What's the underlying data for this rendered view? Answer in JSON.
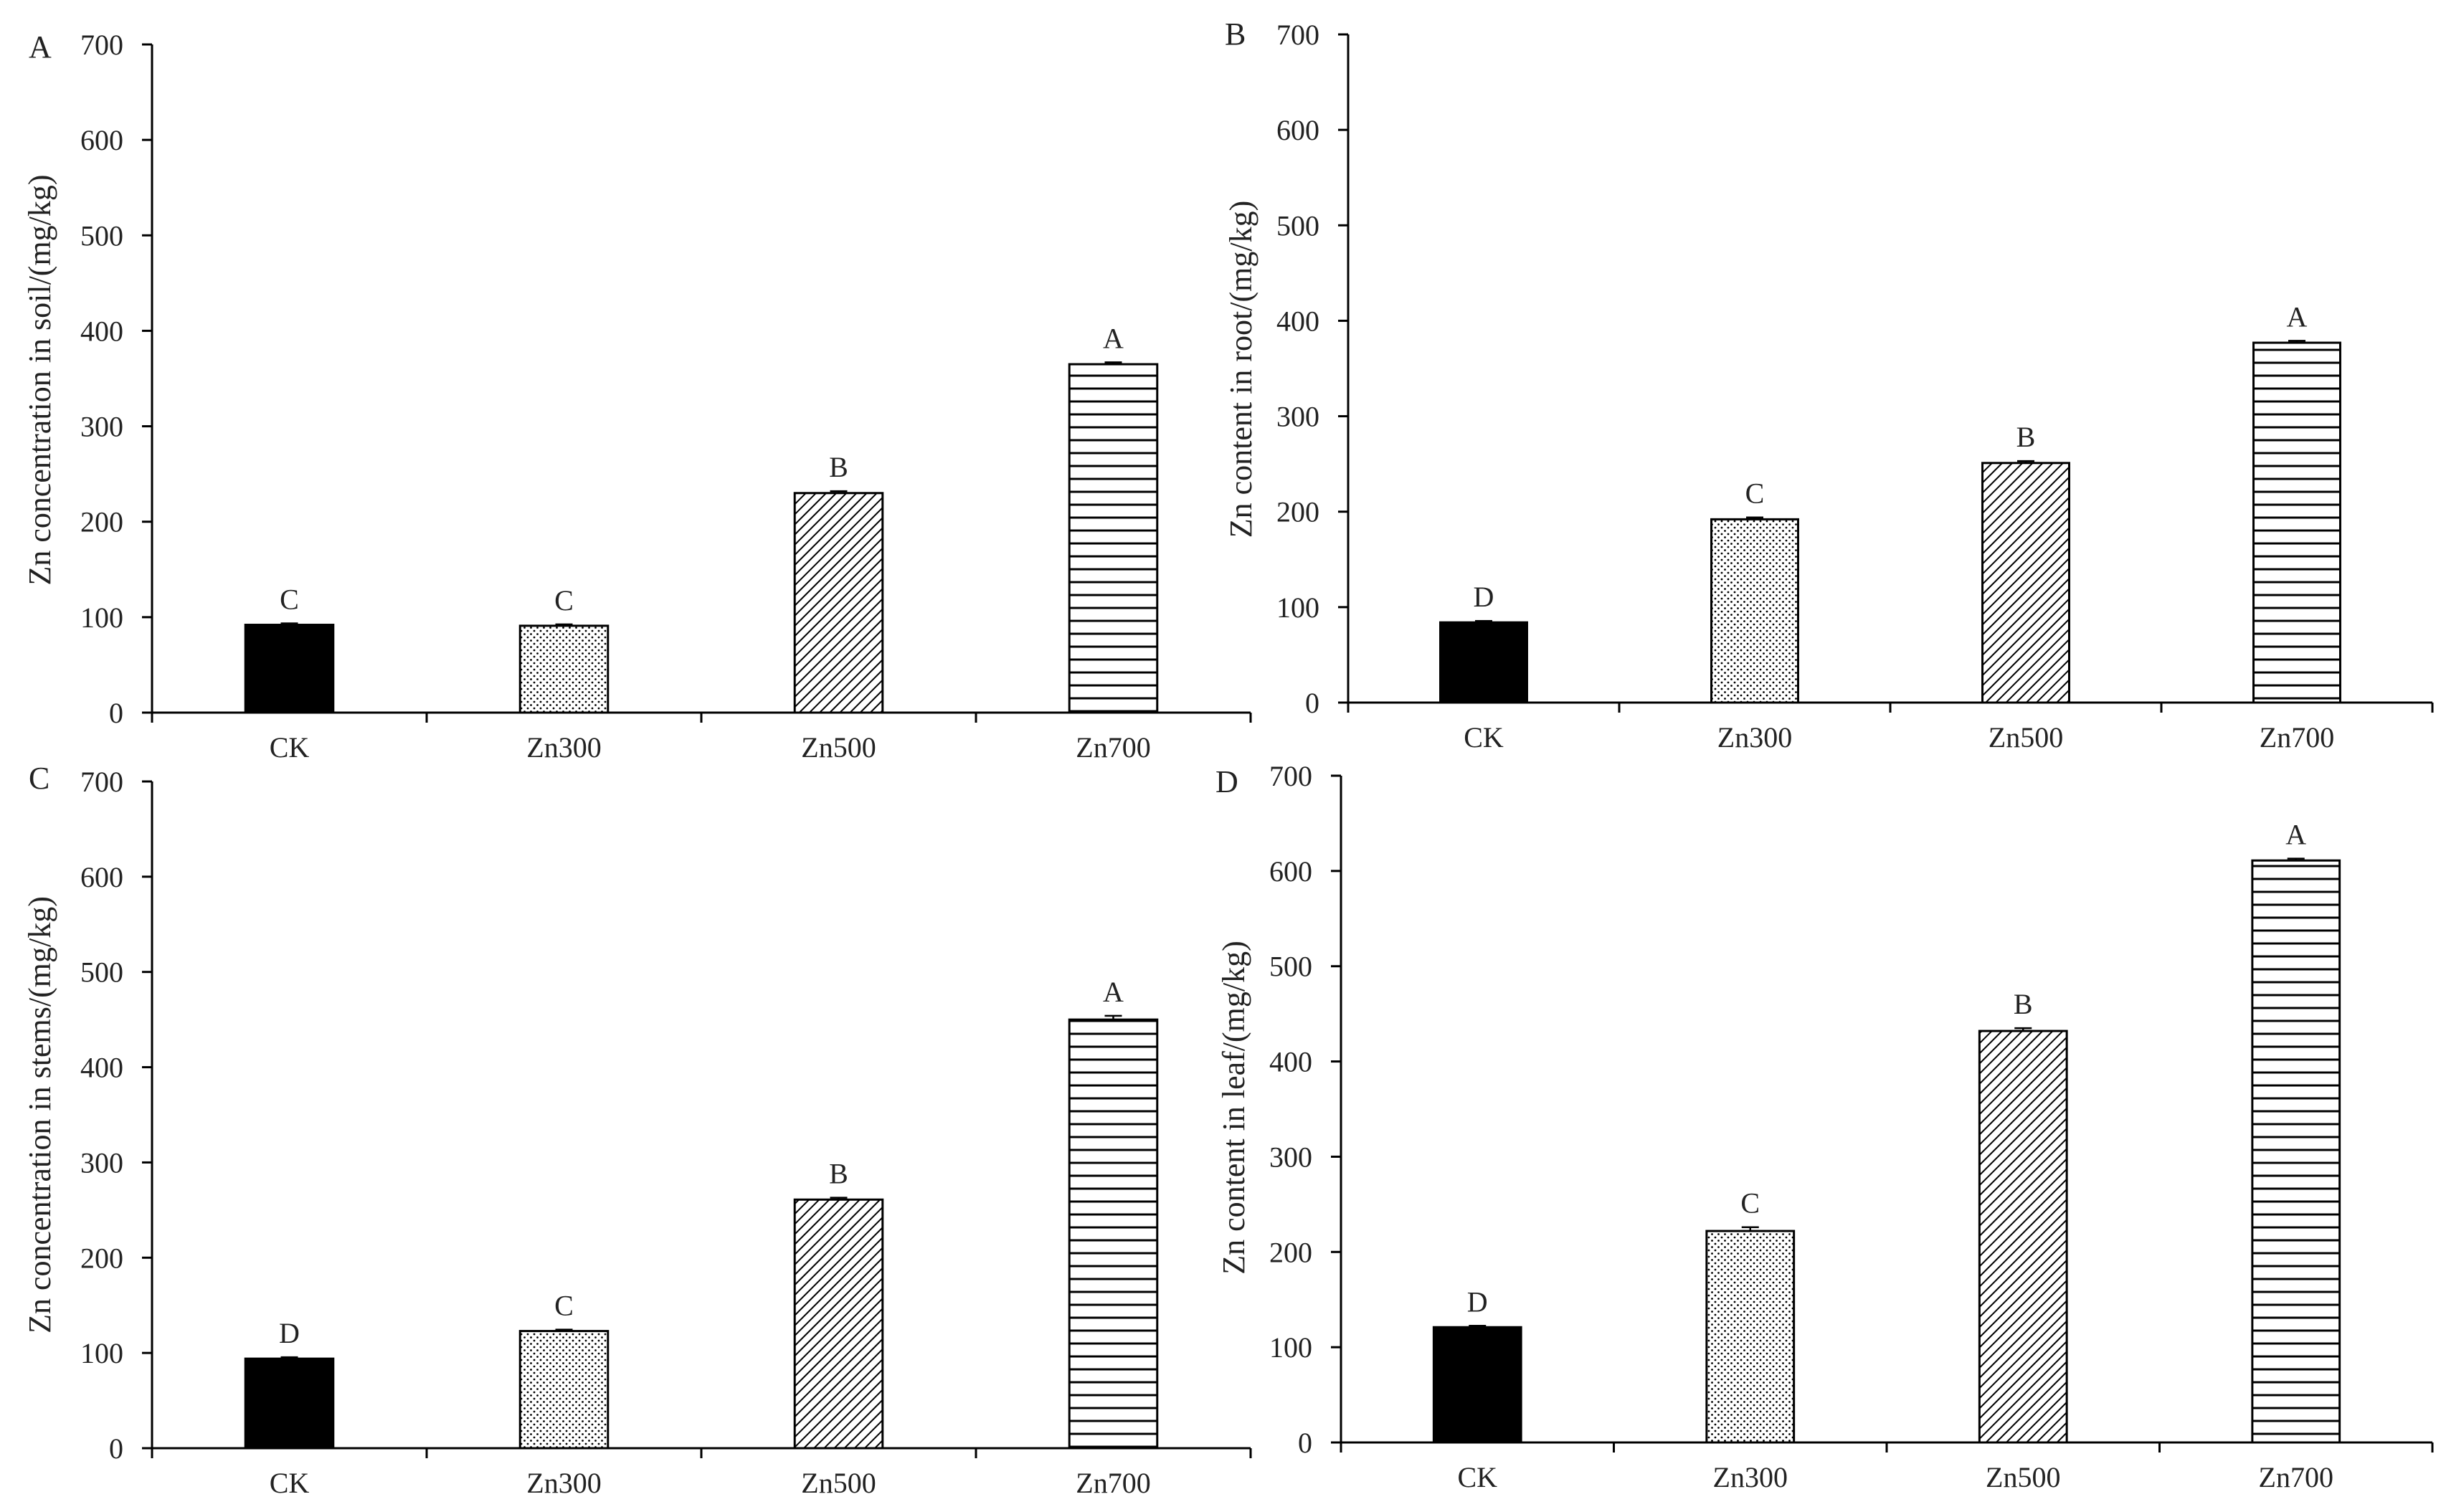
{
  "colors": {
    "ink": "#000000",
    "text": "#222222",
    "background": "#ffffff"
  },
  "chart_data": [
    {
      "type": "bar",
      "panel_label": "A",
      "categories": [
        "CK",
        "Zn300",
        "Zn500",
        "Zn700"
      ],
      "values": [
        92,
        91,
        230,
        365
      ],
      "errors": [
        1.5,
        1.5,
        2,
        2
      ],
      "significance": [
        "C",
        "C",
        "B",
        "A"
      ],
      "patterns": [
        "solid",
        "dots",
        "diagonal",
        "horizontal"
      ],
      "ylabel": "Zn concentration in soil/(mg/kg)",
      "xlabel": "",
      "ylim": [
        0,
        700
      ],
      "yticks": [
        0,
        100,
        200,
        300,
        400,
        500,
        600,
        700
      ],
      "grid": false
    },
    {
      "type": "bar",
      "panel_label": "B",
      "categories": [
        "CK",
        "Zn300",
        "Zn500",
        "Zn700"
      ],
      "values": [
        84,
        192,
        251,
        377
      ],
      "errors": [
        1.5,
        2,
        2,
        2
      ],
      "significance": [
        "D",
        "C",
        "B",
        "A"
      ],
      "patterns": [
        "solid",
        "dots",
        "diagonal",
        "horizontal"
      ],
      "ylabel": "Zn content in root/(mg/kg)",
      "xlabel": "",
      "ylim": [
        0,
        700
      ],
      "yticks": [
        0,
        100,
        200,
        300,
        400,
        500,
        600,
        700
      ],
      "grid": false
    },
    {
      "type": "bar",
      "panel_label": "C",
      "categories": [
        "CK",
        "Zn300",
        "Zn500",
        "Zn700"
      ],
      "values": [
        94,
        123,
        261,
        450
      ],
      "errors": [
        1.5,
        1.5,
        2,
        4
      ],
      "significance": [
        "D",
        "C",
        "B",
        "A"
      ],
      "patterns": [
        "solid",
        "dots",
        "diagonal",
        "horizontal"
      ],
      "ylabel": "Zn concentration in stems/(mg/kg)",
      "xlabel": "",
      "ylim": [
        0,
        700
      ],
      "yticks": [
        0,
        100,
        200,
        300,
        400,
        500,
        600,
        700
      ],
      "grid": false
    },
    {
      "type": "bar",
      "panel_label": "D",
      "categories": [
        "CK",
        "Zn300",
        "Zn500",
        "Zn700"
      ],
      "values": [
        121,
        222,
        432,
        611
      ],
      "errors": [
        1.5,
        4,
        3,
        2
      ],
      "significance": [
        "D",
        "C",
        "B",
        "A"
      ],
      "patterns": [
        "solid",
        "dots",
        "diagonal",
        "horizontal"
      ],
      "ylabel": "Zn content in leaf/(mg/kg)",
      "xlabel": "",
      "ylim": [
        0,
        700
      ],
      "yticks": [
        0,
        100,
        200,
        300,
        400,
        500,
        600,
        700
      ],
      "grid": false
    }
  ]
}
